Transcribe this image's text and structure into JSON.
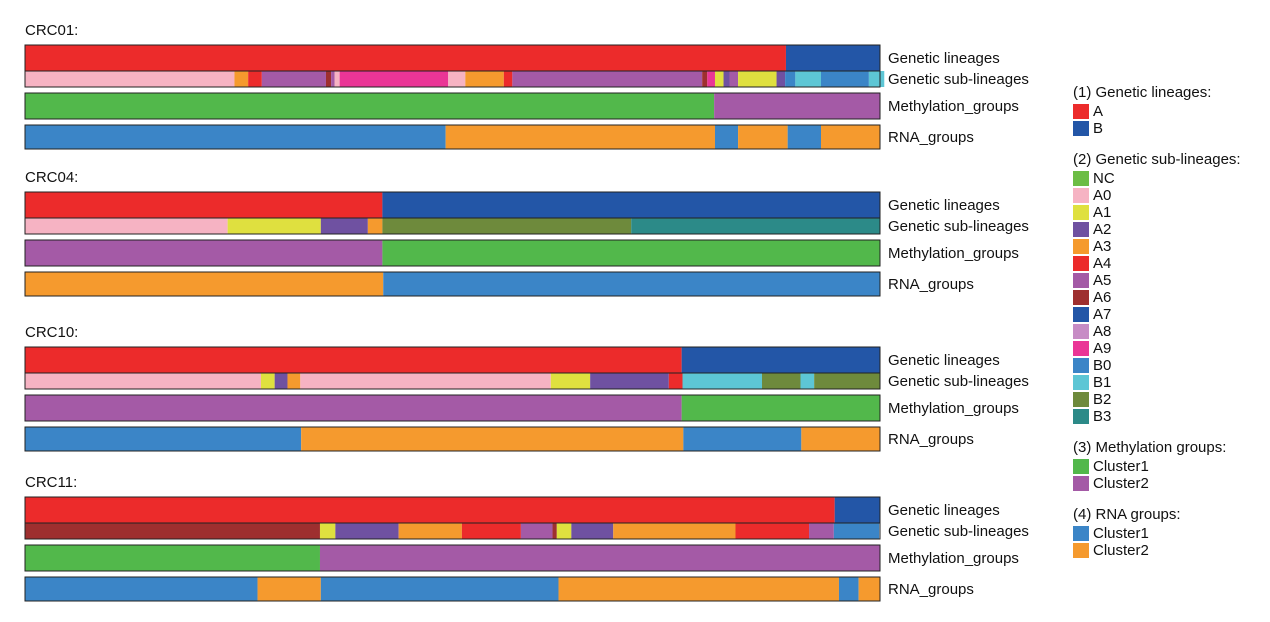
{
  "colors": {
    "NC": "#6cbd45",
    "A0": "#f6b3c3",
    "A1": "#dfe03f",
    "A2": "#6f51a1",
    "A3": "#f59a2e",
    "A4": "#ec2b2b",
    "A5": "#a45aa6",
    "A6": "#9e2f2f",
    "A7": "#2356a7",
    "A8": "#c78cc5",
    "A9": "#ea3596",
    "B0": "#3b85c7",
    "B1": "#5dc6d5",
    "B2": "#6e8a3c",
    "B3": "#2c8a88",
    "A": "#ec2b2b",
    "B": "#2356a7",
    "Meth_Cluster1": "#52b84b",
    "Meth_Cluster2": "#a45aa6",
    "RNA_Cluster1": "#3b85c7",
    "RNA_Cluster2": "#f59a2e"
  },
  "track_labels": {
    "lineage": "Genetic lineages",
    "sublineage": "Genetic sub-lineages",
    "methylation": "Methylation_groups",
    "rna": "RNA_groups"
  },
  "chart_data": {
    "type": "heatmap",
    "description_kind": "categorical annotation tracks per sample",
    "samples": [
      {
        "name": "CRC01:",
        "lineage": [
          [
            "A",
            0.89
          ],
          [
            "B",
            0.11
          ]
        ],
        "sublineage": [
          [
            "A0",
            0.245
          ],
          [
            "A3",
            0.016
          ],
          [
            "A4",
            0.016
          ],
          [
            "A5",
            0.075
          ],
          [
            "A6",
            0.006
          ],
          [
            "A5",
            0.004
          ],
          [
            "A0",
            0.006
          ],
          [
            "A9",
            0.127
          ],
          [
            "A0",
            0.02
          ],
          [
            "A3",
            0.045
          ],
          [
            "A4",
            0.01
          ],
          [
            "A5",
            0.222
          ],
          [
            "A6",
            0.006
          ],
          [
            "A9",
            0.009
          ],
          [
            "A1",
            0.01
          ],
          [
            "A2",
            0.007
          ],
          [
            "A5",
            0.01
          ],
          [
            "A1",
            0.045
          ],
          [
            "A2",
            0.01
          ],
          [
            "B0",
            0.012
          ],
          [
            "B1",
            0.03
          ],
          [
            "B0",
            0.056
          ],
          [
            "B1",
            0.018
          ]
        ],
        "methylation": [
          [
            "Cluster1",
            0.806
          ],
          [
            "Cluster2",
            0.194
          ]
        ],
        "rna": [
          [
            "Cluster1",
            0.492
          ],
          [
            "Cluster2",
            0.315
          ],
          [
            "Cluster1",
            0.027
          ],
          [
            "Cluster2",
            0.058
          ],
          [
            "Cluster1",
            0.039
          ],
          [
            "Cluster2",
            0.069
          ]
        ]
      },
      {
        "name": "CRC04:",
        "lineage": [
          [
            "A",
            0.418
          ],
          [
            "B",
            0.582
          ]
        ],
        "sublineage": [
          [
            "A0",
            0.237
          ],
          [
            "A1",
            0.109
          ],
          [
            "A2",
            0.055
          ],
          [
            "A3",
            0.017
          ],
          [
            "B2",
            0.291
          ],
          [
            "B3",
            0.291
          ]
        ],
        "methylation": [
          [
            "Cluster2",
            0.418
          ],
          [
            "Cluster1",
            0.582
          ]
        ],
        "rna": [
          [
            "Cluster2",
            0.419
          ],
          [
            "Cluster1",
            0.581
          ]
        ]
      },
      {
        "name": "CRC10:",
        "lineage": [
          [
            "A",
            0.768
          ],
          [
            "B",
            0.232
          ]
        ],
        "sublineage": [
          [
            "A0",
            0.276
          ],
          [
            "A1",
            0.016
          ],
          [
            "A2",
            0.015
          ],
          [
            "A3",
            0.015
          ],
          [
            "A0",
            0.293
          ],
          [
            "A1",
            0.046
          ],
          [
            "A2",
            0.092
          ],
          [
            "A4",
            0.016
          ],
          [
            "B1",
            0.093
          ],
          [
            "B2",
            0.045
          ],
          [
            "B1",
            0.016
          ],
          [
            "B2",
            0.077
          ]
        ],
        "methylation": [
          [
            "Cluster2",
            0.768
          ],
          [
            "Cluster1",
            0.232
          ]
        ],
        "rna": [
          [
            "Cluster1",
            0.323
          ],
          [
            "Cluster2",
            0.447
          ],
          [
            "Cluster1",
            0.138
          ],
          [
            "Cluster2",
            0.092
          ]
        ]
      },
      {
        "name": "CRC11:",
        "lineage": [
          [
            "A",
            0.947
          ],
          [
            "B",
            0.053
          ]
        ],
        "sublineage": [
          [
            "A6",
            0.345
          ],
          [
            "A1",
            0.018
          ],
          [
            "A2",
            0.074
          ],
          [
            "A3",
            0.074
          ],
          [
            "A4",
            0.069
          ],
          [
            "A5",
            0.037
          ],
          [
            "A6",
            0.005
          ],
          [
            "A1",
            0.017
          ],
          [
            "A2",
            0.049
          ],
          [
            "A3",
            0.143
          ],
          [
            "A4",
            0.086
          ],
          [
            "A5",
            0.029
          ],
          [
            "B0",
            0.053
          ]
        ],
        "methylation": [
          [
            "Cluster1",
            0.345
          ],
          [
            "Cluster2",
            0.655
          ]
        ],
        "rna": [
          [
            "Cluster1",
            0.272
          ],
          [
            "Cluster2",
            0.074
          ],
          [
            "Cluster1",
            0.278
          ],
          [
            "Cluster2",
            0.328
          ],
          [
            "Cluster1",
            0.023
          ],
          [
            "Cluster2",
            0.025
          ]
        ]
      }
    ],
    "legend": [
      {
        "title": "(1) Genetic lineages:",
        "key": "lineage",
        "items": [
          {
            "label": "A",
            "color_key": "A"
          },
          {
            "label": "B",
            "color_key": "B"
          }
        ]
      },
      {
        "title": "(2) Genetic sub-lineages:",
        "key": "sublineage",
        "items": [
          {
            "label": "NC",
            "color_key": "NC"
          },
          {
            "label": "A0",
            "color_key": "A0"
          },
          {
            "label": "A1",
            "color_key": "A1"
          },
          {
            "label": "A2",
            "color_key": "A2"
          },
          {
            "label": "A3",
            "color_key": "A3"
          },
          {
            "label": "A4",
            "color_key": "A4"
          },
          {
            "label": "A5",
            "color_key": "A5"
          },
          {
            "label": "A6",
            "color_key": "A6"
          },
          {
            "label": "A7",
            "color_key": "A7"
          },
          {
            "label": "A8",
            "color_key": "A8"
          },
          {
            "label": "A9",
            "color_key": "A9"
          },
          {
            "label": "B0",
            "color_key": "B0"
          },
          {
            "label": "B1",
            "color_key": "B1"
          },
          {
            "label": "B2",
            "color_key": "B2"
          },
          {
            "label": "B3",
            "color_key": "B3"
          }
        ]
      },
      {
        "title": "(3) Methylation groups:",
        "key": "methylation",
        "items": [
          {
            "label": "Cluster1",
            "color_key": "Meth_Cluster1"
          },
          {
            "label": "Cluster2",
            "color_key": "Meth_Cluster2"
          }
        ]
      },
      {
        "title": "(4) RNA groups:",
        "key": "rna",
        "items": [
          {
            "label": "Cluster1",
            "color_key": "RNA_Cluster1"
          },
          {
            "label": "Cluster2",
            "color_key": "RNA_Cluster2"
          }
        ]
      }
    ]
  }
}
